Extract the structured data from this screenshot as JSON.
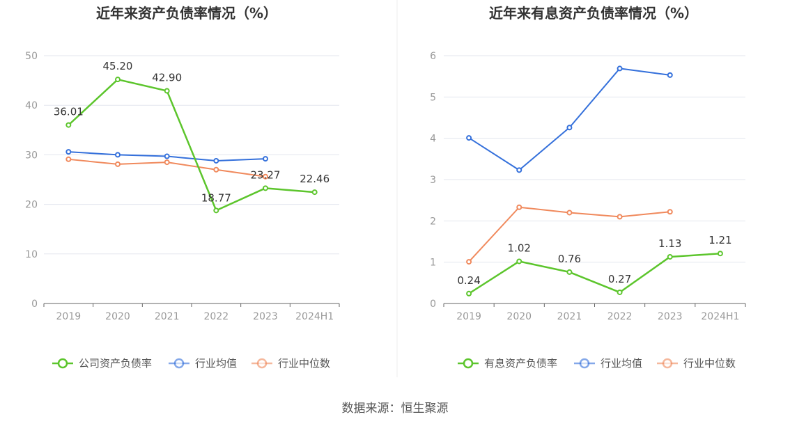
{
  "source_text": "数据来源：恒生聚源",
  "colors": {
    "company": "#5cc52c",
    "industry_avg": "#3470db",
    "industry_median": "#f0895c",
    "grid": "#e3e6ee",
    "axis": "#666666"
  },
  "chart_data": [
    {
      "type": "line",
      "title": "近年来资产负债率情况（%）",
      "categories": [
        "2019",
        "2020",
        "2021",
        "2022",
        "2023",
        "2024H1"
      ],
      "ylim": [
        0,
        50
      ],
      "yticks": [
        0,
        10,
        20,
        30,
        40,
        50
      ],
      "series": [
        {
          "name": "公司资产负债率",
          "key": "company",
          "values": [
            36.01,
            45.2,
            42.9,
            18.77,
            23.27,
            22.46
          ],
          "labels": [
            "36.01",
            "45.20",
            "42.90",
            "18.77",
            "23.27",
            "22.46"
          ]
        },
        {
          "name": "行业均值",
          "key": "industry_avg",
          "values": [
            30.6,
            30.0,
            29.7,
            28.8,
            29.2,
            null
          ]
        },
        {
          "name": "行业中位数",
          "key": "industry_median",
          "values": [
            29.1,
            28.1,
            28.5,
            27.0,
            25.6,
            null
          ]
        }
      ]
    },
    {
      "type": "line",
      "title": "近年来有息资产负债率情况（%）",
      "categories": [
        "2019",
        "2020",
        "2021",
        "2022",
        "2023",
        "2024H1"
      ],
      "ylim": [
        0,
        6
      ],
      "yticks": [
        0,
        1,
        2,
        3,
        4,
        5,
        6
      ],
      "series": [
        {
          "name": "有息资产负债率",
          "key": "company",
          "values": [
            0.24,
            1.02,
            0.76,
            0.27,
            1.13,
            1.21
          ],
          "labels": [
            "0.24",
            "1.02",
            "0.76",
            "0.27",
            "1.13",
            "1.21"
          ]
        },
        {
          "name": "行业均值",
          "key": "industry_avg",
          "values": [
            4.01,
            3.23,
            4.26,
            5.69,
            5.53,
            null
          ]
        },
        {
          "name": "行业中位数",
          "key": "industry_median",
          "values": [
            1.01,
            2.33,
            2.2,
            2.1,
            2.22,
            null
          ]
        }
      ]
    }
  ]
}
